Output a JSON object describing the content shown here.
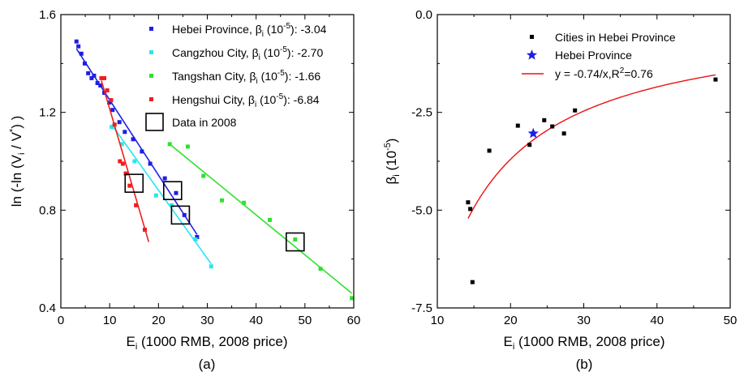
{
  "chart_data": [
    {
      "type": "scatter",
      "panel_label": "(a)",
      "xlabel_main": "E",
      "xlabel_sub": "i",
      "xlabel_rest": " (1000 RMB, 2008 price)",
      "ylabel": "ln (-ln (V_i / V^*) )",
      "xlim": [
        0,
        60
      ],
      "ylim": [
        0.4,
        1.6
      ],
      "xticks": [
        "0",
        "10",
        "20",
        "30",
        "40",
        "50",
        "60"
      ],
      "yticks": [
        "0.4",
        "0.8",
        "1.2",
        "1.6"
      ],
      "legend_position": "top-right",
      "series": [
        {
          "name": "Hebei Province",
          "legend_prefix": "Hebei Province, ",
          "legend_suffix": " (10",
          "legend_exp": "-5",
          "legend_value": "): -3.04",
          "color": "#1e1ee6",
          "points": [
            [
              3.2,
              1.49
            ],
            [
              3.6,
              1.47
            ],
            [
              4.2,
              1.44
            ],
            [
              4.9,
              1.4
            ],
            [
              5.6,
              1.36
            ],
            [
              6.3,
              1.34
            ],
            [
              6.8,
              1.35
            ],
            [
              7.5,
              1.32
            ],
            [
              8.1,
              1.31
            ],
            [
              8.9,
              1.28
            ],
            [
              9.9,
              1.24
            ],
            [
              10.6,
              1.21
            ],
            [
              12.0,
              1.16
            ],
            [
              13.1,
              1.12
            ],
            [
              14.8,
              1.09
            ],
            [
              16.6,
              1.04
            ],
            [
              18.3,
              0.99
            ],
            [
              21.3,
              0.93
            ],
            [
              23.6,
              0.87
            ],
            [
              25.3,
              0.78
            ],
            [
              27.9,
              0.69
            ]
          ],
          "fit": [
            [
              3.2,
              1.46
            ],
            [
              27.9,
              0.7
            ]
          ]
        },
        {
          "name": "Cangzhou City",
          "legend_prefix": "Cangzhou City, ",
          "legend_suffix": " (10",
          "legend_exp": "-5",
          "legend_value": "): -2.70",
          "color": "#28e6f0",
          "points": [
            [
              10.4,
              1.14
            ],
            [
              12.5,
              1.07
            ],
            [
              15.1,
              1.0
            ],
            [
              19.5,
              0.86
            ],
            [
              22.7,
              0.82
            ],
            [
              27.6,
              0.68
            ],
            [
              30.8,
              0.57
            ]
          ],
          "fit": [
            [
              10.4,
              1.15
            ],
            [
              30.8,
              0.58
            ]
          ]
        },
        {
          "name": "Tangshan City",
          "legend_prefix": "Tangshan City, ",
          "legend_suffix": " (10",
          "legend_exp": "-5",
          "legend_value": "): -1.66",
          "color": "#2fe02f",
          "points": [
            [
              22.3,
              1.07
            ],
            [
              26.0,
              1.06
            ],
            [
              29.2,
              0.94
            ],
            [
              33.0,
              0.84
            ],
            [
              37.5,
              0.83
            ],
            [
              42.8,
              0.76
            ],
            [
              48.0,
              0.68
            ],
            [
              53.2,
              0.56
            ],
            [
              59.6,
              0.44
            ]
          ],
          "fit": [
            [
              22.3,
              1.07
            ],
            [
              59.6,
              0.46
            ]
          ]
        },
        {
          "name": "Hengshui City",
          "legend_prefix": "Hengshui City, ",
          "legend_suffix": " (10",
          "legend_exp": "-5",
          "legend_value": "): -6.84",
          "color": "#ee1e1e",
          "points": [
            [
              8.3,
              1.34
            ],
            [
              8.9,
              1.34
            ],
            [
              9.5,
              1.29
            ],
            [
              10.3,
              1.25
            ],
            [
              11.0,
              1.15
            ],
            [
              12.1,
              1.0
            ],
            [
              12.7,
              0.99
            ],
            [
              13.3,
              0.95
            ],
            [
              14.1,
              0.9
            ],
            [
              15.4,
              0.82
            ],
            [
              17.2,
              0.72
            ]
          ],
          "fit": [
            [
              8.3,
              1.33
            ],
            [
              18.0,
              0.67
            ]
          ]
        }
      ],
      "beta_symbol": "β",
      "beta_sub": "i",
      "box_legend_label": "Data in 2008",
      "boxes_2008": [
        [
          15.0,
          0.91
        ],
        [
          22.9,
          0.88
        ],
        [
          24.5,
          0.78
        ],
        [
          48.0,
          0.67
        ]
      ]
    },
    {
      "type": "scatter",
      "panel_label": "(b)",
      "xlabel_main": "E",
      "xlabel_sub": "i",
      "xlabel_rest": " (1000 RMB, 2008 price)",
      "ylabel_main": "β",
      "ylabel_sub": "i",
      "ylabel_rest": " (10",
      "ylabel_exp": "-5",
      "ylabel_close": ")",
      "xlim": [
        10,
        50
      ],
      "ylim": [
        -7.5,
        0.0
      ],
      "xticks": [
        "10",
        "20",
        "30",
        "40",
        "50"
      ],
      "yticks": [
        "0.0",
        "-2.5",
        "-5.0",
        "-7.5"
      ],
      "legend_position": "top-right",
      "cities_label": "Cities in Hebei Province",
      "province_label": "Hebei Province",
      "fit_label_prefix": "y = -0.74/x,R",
      "fit_label_exp": "2",
      "fit_label_suffix": "=0.76",
      "cities_color": "#000000",
      "province_color": "#1e1ee6",
      "fit_color": "#ee1111",
      "cities": [
        [
          14.2,
          -4.8
        ],
        [
          14.5,
          -4.97
        ],
        [
          14.8,
          -6.84
        ],
        [
          17.1,
          -3.48
        ],
        [
          21.0,
          -2.84
        ],
        [
          22.6,
          -3.33
        ],
        [
          24.6,
          -2.7
        ],
        [
          25.7,
          -2.86
        ],
        [
          27.3,
          -3.04
        ],
        [
          28.8,
          -2.45
        ],
        [
          48.0,
          -1.66
        ]
      ],
      "province": [
        23.1,
        -3.04
      ],
      "fit_x_range": [
        14.2,
        48.0
      ]
    }
  ]
}
